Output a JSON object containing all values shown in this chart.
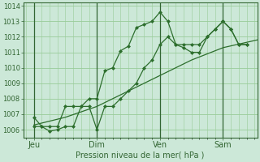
{
  "bg_color": "#cce8d8",
  "grid_color": "#99cc99",
  "line_color": "#2d6e2d",
  "ylim": [
    1005.5,
    1014.2
  ],
  "yticks": [
    1006,
    1007,
    1008,
    1009,
    1010,
    1011,
    1012,
    1013,
    1014
  ],
  "day_labels": [
    "Jeu",
    "Dim",
    "Ven",
    "Sam"
  ],
  "day_positions": [
    0,
    48,
    96,
    144
  ],
  "xlim": [
    -8,
    170
  ],
  "xlabel": "Pression niveau de la mer( hPa )",
  "line1_x": [
    0,
    6,
    12,
    18,
    24,
    30,
    36,
    42,
    48,
    54,
    60,
    66,
    72,
    78,
    84,
    90,
    96,
    102,
    108,
    114,
    120,
    126,
    132,
    138,
    144,
    150,
    156,
    162
  ],
  "line1_y": [
    1006.8,
    1006.2,
    1006.2,
    1006.2,
    1007.5,
    1007.5,
    1007.5,
    1008.0,
    1008.0,
    1009.8,
    1010.0,
    1011.1,
    1011.4,
    1012.6,
    1012.8,
    1013.0,
    1013.6,
    1013.0,
    1011.5,
    1011.3,
    1011.0,
    1011.0,
    1012.0,
    1012.5,
    1013.0,
    1012.5,
    1011.5,
    1011.5
  ],
  "line2_x": [
    0,
    6,
    12,
    18,
    24,
    30,
    36,
    42,
    48,
    54,
    60,
    66,
    72,
    78,
    84,
    90,
    96,
    102,
    108,
    114,
    120,
    126,
    132,
    138,
    144,
    150,
    156,
    162
  ],
  "line2_y": [
    1006.2,
    1006.2,
    1005.9,
    1006.0,
    1006.2,
    1006.2,
    1007.5,
    1007.5,
    1006.0,
    1007.5,
    1007.5,
    1008.0,
    1008.5,
    1009.0,
    1010.0,
    1010.5,
    1011.5,
    1012.0,
    1011.5,
    1011.5,
    1011.5,
    1011.5,
    1012.0,
    1012.5,
    1013.0,
    1012.5,
    1011.5,
    1011.5
  ],
  "line3_x": [
    0,
    24,
    48,
    72,
    96,
    120,
    144,
    170
  ],
  "line3_y": [
    1006.3,
    1006.8,
    1007.5,
    1008.5,
    1009.5,
    1010.5,
    1011.3,
    1011.8
  ],
  "tick_fontsize": 6,
  "label_fontsize": 7,
  "tick_color": "#336633",
  "marker": "D",
  "markersize": 2.0,
  "linewidth": 0.9
}
